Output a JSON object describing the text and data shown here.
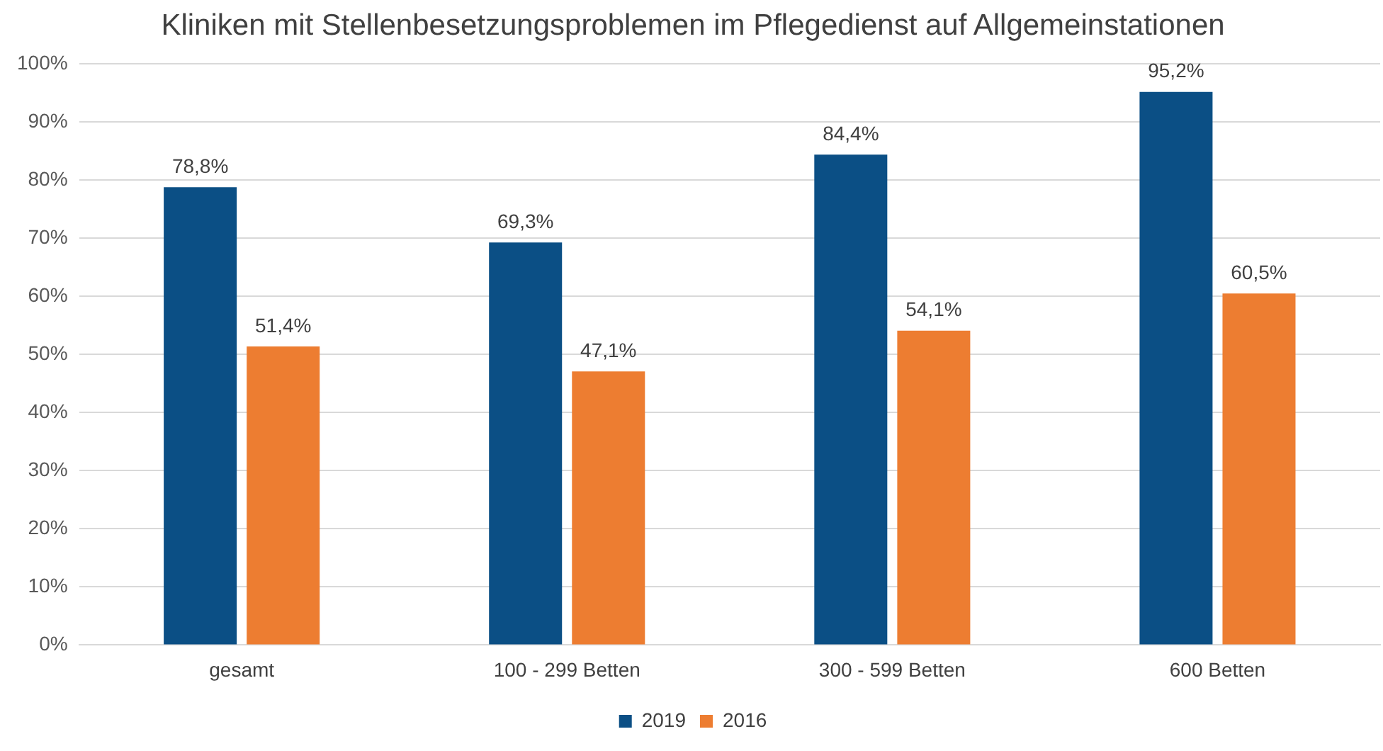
{
  "chart_data": {
    "type": "bar",
    "title": "Kliniken mit Stellenbesetzungsproblemen im Pflegedienst auf Allgemeinstationen",
    "categories": [
      "gesamt",
      "100 - 299 Betten",
      "300 - 599 Betten",
      "600 Betten"
    ],
    "series": [
      {
        "name": "2019",
        "color": "#0b4f85",
        "values": [
          78.8,
          69.3,
          84.4,
          95.2
        ],
        "value_labels": [
          "78,8%",
          "69,3%",
          "84,4%",
          "95,2%"
        ]
      },
      {
        "name": "2016",
        "color": "#ed7d31",
        "values": [
          51.4,
          47.1,
          54.1,
          60.5
        ],
        "value_labels": [
          "51,4%",
          "47,1%",
          "54,1%",
          "60,5%"
        ]
      }
    ],
    "ylim": [
      0,
      100
    ],
    "yticks": [
      {
        "value": 0,
        "label": "0%"
      },
      {
        "value": 10,
        "label": "10%"
      },
      {
        "value": 20,
        "label": "20%"
      },
      {
        "value": 30,
        "label": "30%"
      },
      {
        "value": 40,
        "label": "40%"
      },
      {
        "value": 50,
        "label": "50%"
      },
      {
        "value": 60,
        "label": "60%"
      },
      {
        "value": 70,
        "label": "70%"
      },
      {
        "value": 80,
        "label": "80%"
      },
      {
        "value": 90,
        "label": "90%"
      },
      {
        "value": 100,
        "label": "100%"
      }
    ],
    "grid": "y",
    "legend": "bottom"
  }
}
